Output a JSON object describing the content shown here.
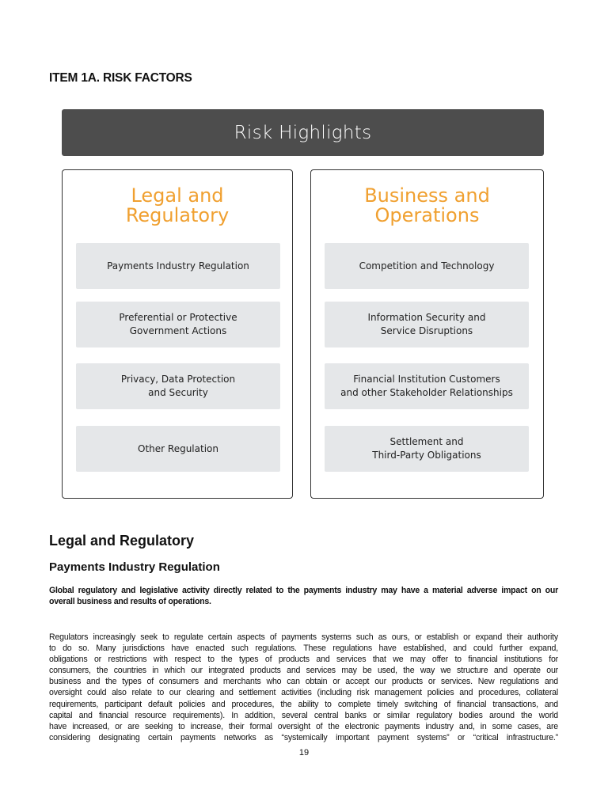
{
  "item_title": "ITEM 1A.  RISK FACTORS",
  "graphic": {
    "banner": "Risk Highlights",
    "accent_color": "#f0a030",
    "columns": [
      {
        "heading": "Legal and\nRegulatory",
        "items": [
          "Payments Industry Regulation",
          "Preferential or Protective\nGovernment Actions",
          "Privacy, Data Protection\nand Security",
          "Other Regulation"
        ]
      },
      {
        "heading": "Business and\nOperations",
        "items": [
          "Competition and Technology",
          "Information Security and\nService Disruptions",
          "Financial Institution Customers\nand other Stakeholder Relationships",
          "Settlement and\nThird-Party Obligations"
        ]
      }
    ]
  },
  "section_heading": "Legal and Regulatory",
  "subsection_heading": "Payments Industry Regulation",
  "bold_lines": [
    "Global regulatory and legislative activity directly related to the payments industry may have a material adverse impact on our",
    "overall business and results of operations."
  ],
  "body_lines": [
    "Regulators increasingly seek to regulate certain aspects of payments systems such as ours, or establish or expand their authority",
    "to do so.  Many jurisdictions have enacted such regulations.  These regulations have established, and could further expand,",
    "obligations or restrictions with respect to the types of products and services that we may offer to financial institutions for",
    "consumers, the countries in which our integrated products and services may be used, the way we structure and operate our",
    "business and the types of consumers and merchants who can obtain or accept our products or services.  New regulations and",
    "oversight could also relate to our clearing and settlement activities (including risk management policies and procedures, collateral",
    "requirements, participant default policies and procedures, the ability to complete timely switching of financial transactions, and",
    "capital and financial resource requirements).  In addition, several central banks or similar regulatory bodies around the world",
    "have increased, or are seeking to increase, their formal oversight of the electronic payments industry and, in some cases, are",
    "considering designating certain payments networks as “systemically important payment systems” or “critical infrastructure.”"
  ],
  "page_number": "19"
}
